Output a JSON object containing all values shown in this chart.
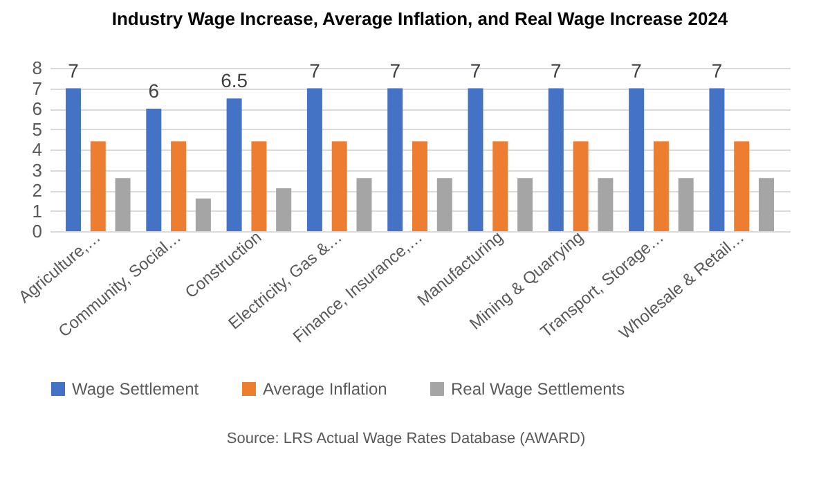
{
  "chart_data": {
    "type": "bar",
    "title": "Industry Wage Increase, Average Inflation, and Real Wage Increase 2024",
    "categories": [
      "Agriculture,…",
      "Community, Social…",
      "Construction",
      "Electricity, Gas &…",
      "Finance, Insurance,…",
      "Manufacturing",
      "Mining & Quarrying",
      "Transport, Storage…",
      "Wholesale & Retail…"
    ],
    "series": [
      {
        "name": "Wage Settlement",
        "color": "#4472c4",
        "values": [
          7,
          6,
          6.5,
          7,
          7,
          7,
          7,
          7,
          7
        ],
        "value_labels": [
          "7",
          "6",
          "6.5",
          "7",
          "7",
          "7",
          "7",
          "7",
          "7"
        ]
      },
      {
        "name": "Average Inflation",
        "color": "#ed7d31",
        "values": [
          4.4,
          4.4,
          4.4,
          4.4,
          4.4,
          4.4,
          4.4,
          4.4,
          4.4
        ]
      },
      {
        "name": "Real Wage Settlements",
        "color": "#a5a5a5",
        "values": [
          2.6,
          1.6,
          2.1,
          2.6,
          2.6,
          2.6,
          2.6,
          2.6,
          2.6
        ]
      }
    ],
    "ylim": [
      0,
      8
    ],
    "yticks": [
      0,
      1,
      2,
      3,
      4,
      5,
      6,
      7,
      8
    ],
    "grid": "y",
    "legend": "bottom",
    "annotations": [
      "Source: LRS Actual Wage Rates Database (AWARD)"
    ]
  }
}
